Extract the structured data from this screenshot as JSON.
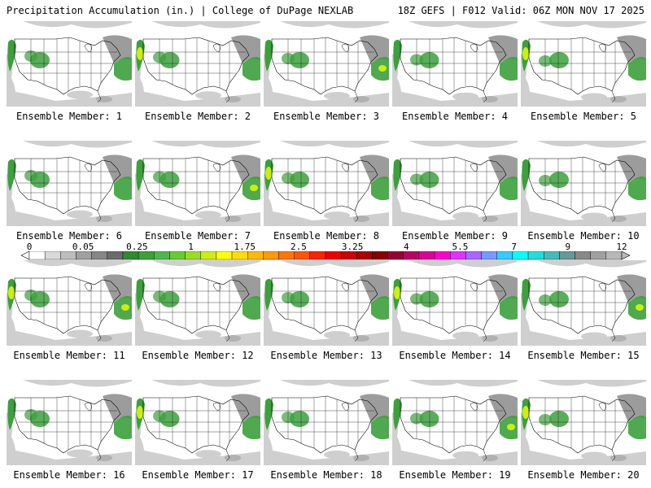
{
  "header": {
    "title": "Precipitation Accumulation (in.) | College of DuPage NEXLAB",
    "run_info": "18Z GEFS | F012 Valid: 06Z MON NOV 17 2025"
  },
  "panels": [
    {
      "member": 1,
      "label": "Ensemble Member: 1"
    },
    {
      "member": 2,
      "label": "Ensemble Member: 2"
    },
    {
      "member": 3,
      "label": "Ensemble Member: 3"
    },
    {
      "member": 4,
      "label": "Ensemble Member: 4"
    },
    {
      "member": 5,
      "label": "Ensemble Member: 5"
    },
    {
      "member": 6,
      "label": "Ensemble Member: 6"
    },
    {
      "member": 7,
      "label": "Ensemble Member: 7"
    },
    {
      "member": 8,
      "label": "Ensemble Member: 8"
    },
    {
      "member": 9,
      "label": "Ensemble Member: 9"
    },
    {
      "member": 10,
      "label": "Ensemble Member: 10"
    },
    {
      "member": 11,
      "label": "Ensemble Member: 11"
    },
    {
      "member": 12,
      "label": "Ensemble Member: 12"
    },
    {
      "member": 13,
      "label": "Ensemble Member: 13"
    },
    {
      "member": 14,
      "label": "Ensemble Member: 14"
    },
    {
      "member": 15,
      "label": "Ensemble Member: 15"
    },
    {
      "member": 16,
      "label": "Ensemble Member: 16"
    },
    {
      "member": 17,
      "label": "Ensemble Member: 17"
    },
    {
      "member": 18,
      "label": "Ensemble Member: 18"
    },
    {
      "member": 19,
      "label": "Ensemble Member: 19"
    },
    {
      "member": 20,
      "label": "Ensemble Member: 20"
    }
  ],
  "colorbar": {
    "unit": "in.",
    "tick_labels": [
      "0",
      "0.05",
      "0.25",
      "1",
      "1.75",
      "2.5",
      "3.25",
      "4",
      "5.5",
      "7",
      "9",
      "12"
    ],
    "colors": [
      "#ffffff",
      "#d9d9d9",
      "#bdbdbd",
      "#a0a0a0",
      "#868686",
      "#6b6b6b",
      "#2e8b2e",
      "#3ca03c",
      "#4db84d",
      "#66cc33",
      "#99dd22",
      "#ccee11",
      "#ffff00",
      "#ffdd00",
      "#ffbb00",
      "#ff9900",
      "#ff7700",
      "#ff5500",
      "#ff2200",
      "#ee0000",
      "#cc0000",
      "#aa0000",
      "#880000",
      "#990033",
      "#bb0066",
      "#dd0099",
      "#ff00cc",
      "#dd33ff",
      "#aa66ff",
      "#7799ff",
      "#33ccff",
      "#00ffff",
      "#22dddd",
      "#44bbbb",
      "#669999",
      "#888888",
      "#a0a0a0",
      "#b8b8b8"
    ]
  },
  "map_colors": {
    "land": "#ffffff",
    "light_precip": "#cfcfcf",
    "moderate_precip": "#9c9c9c",
    "green_precip": "#3ca03c",
    "bright_precip": "#ccee11",
    "outline": "#000000"
  }
}
